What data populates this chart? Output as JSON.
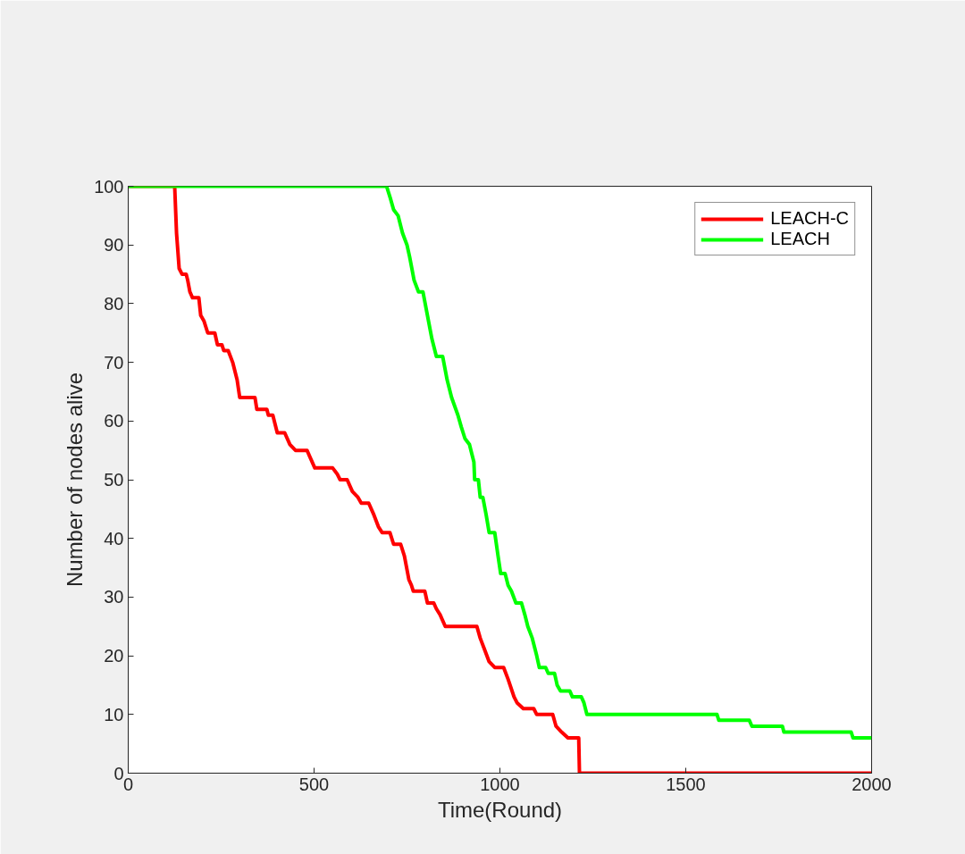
{
  "chart_data": {
    "type": "line",
    "xlabel": "Time(Round)",
    "ylabel": "Number of nodes alive",
    "xlim": [
      0,
      2000
    ],
    "ylim": [
      0,
      100
    ],
    "xticks": [
      0,
      500,
      1000,
      1500,
      2000
    ],
    "yticks": [
      0,
      10,
      20,
      30,
      40,
      50,
      60,
      70,
      80,
      90,
      100
    ],
    "grid": false,
    "legend": "top right",
    "line_style": "solid",
    "series": [
      {
        "name": "LEACH-C",
        "color": "#ff0000",
        "x": [
          0,
          125,
          130,
          137,
          145,
          156,
          160,
          166,
          173,
          190,
          195,
          204,
          214,
          233,
          240,
          252,
          257,
          269,
          281,
          293,
          300,
          341,
          346,
          373,
          377,
          389,
          401,
          421,
          435,
          450,
          481,
          502,
          550,
          562,
          570,
          589,
          603,
          618,
          627,
          647,
          661,
          673,
          683,
          704,
          714,
          733,
          743,
          755,
          762,
          767,
          798,
          805,
          822,
          829,
          839,
          853,
          938,
          947,
          959,
          971,
          986,
          1010,
          1022,
          1038,
          1046,
          1063,
          1091,
          1099,
          1142,
          1151,
          1166,
          1183,
          1212,
          1214,
          2000
        ],
        "values": [
          100,
          100,
          92,
          86,
          85,
          85,
          84,
          82,
          81,
          81,
          78,
          77,
          75,
          75,
          73,
          73,
          72,
          72,
          70,
          67,
          64,
          64,
          62,
          62,
          61,
          61,
          58,
          58,
          56,
          55,
          55,
          52,
          52,
          51,
          50,
          50,
          48,
          47,
          46,
          46,
          44,
          42,
          41,
          41,
          39,
          39,
          37,
          33,
          32,
          31,
          31,
          29,
          29,
          28,
          27,
          25,
          25,
          23,
          21,
          19,
          18,
          18,
          16,
          13,
          12,
          11,
          11,
          10,
          10,
          8,
          7,
          6,
          6,
          0,
          0
        ]
      },
      {
        "name": "LEACH",
        "color": "#00ff00",
        "x": [
          0,
          695,
          705,
          714,
          726,
          738,
          750,
          757,
          763,
          769,
          781,
          793,
          805,
          817,
          829,
          846,
          858,
          870,
          887,
          896,
          906,
          918,
          930,
          932,
          942,
          947,
          954,
          963,
          971,
          986,
          995,
          1002,
          1014,
          1022,
          1031,
          1043,
          1058,
          1067,
          1075,
          1087,
          1099,
          1106,
          1123,
          1130,
          1147,
          1154,
          1163,
          1188,
          1195,
          1219,
          1226,
          1234,
          1584,
          1589,
          1671,
          1678,
          1760,
          1764,
          1945,
          1950,
          2000
        ],
        "values": [
          100,
          100,
          98,
          96,
          95,
          92,
          90,
          88,
          86,
          84,
          82,
          82,
          78,
          74,
          71,
          71,
          67,
          64,
          61,
          59,
          57,
          56,
          53,
          50,
          50,
          47,
          47,
          44,
          41,
          41,
          37,
          34,
          34,
          32,
          31,
          29,
          29,
          27,
          25,
          23,
          20,
          18,
          18,
          17,
          17,
          15,
          14,
          14,
          13,
          13,
          12,
          10,
          10,
          9,
          9,
          8,
          8,
          7,
          7,
          6,
          6
        ]
      }
    ]
  }
}
